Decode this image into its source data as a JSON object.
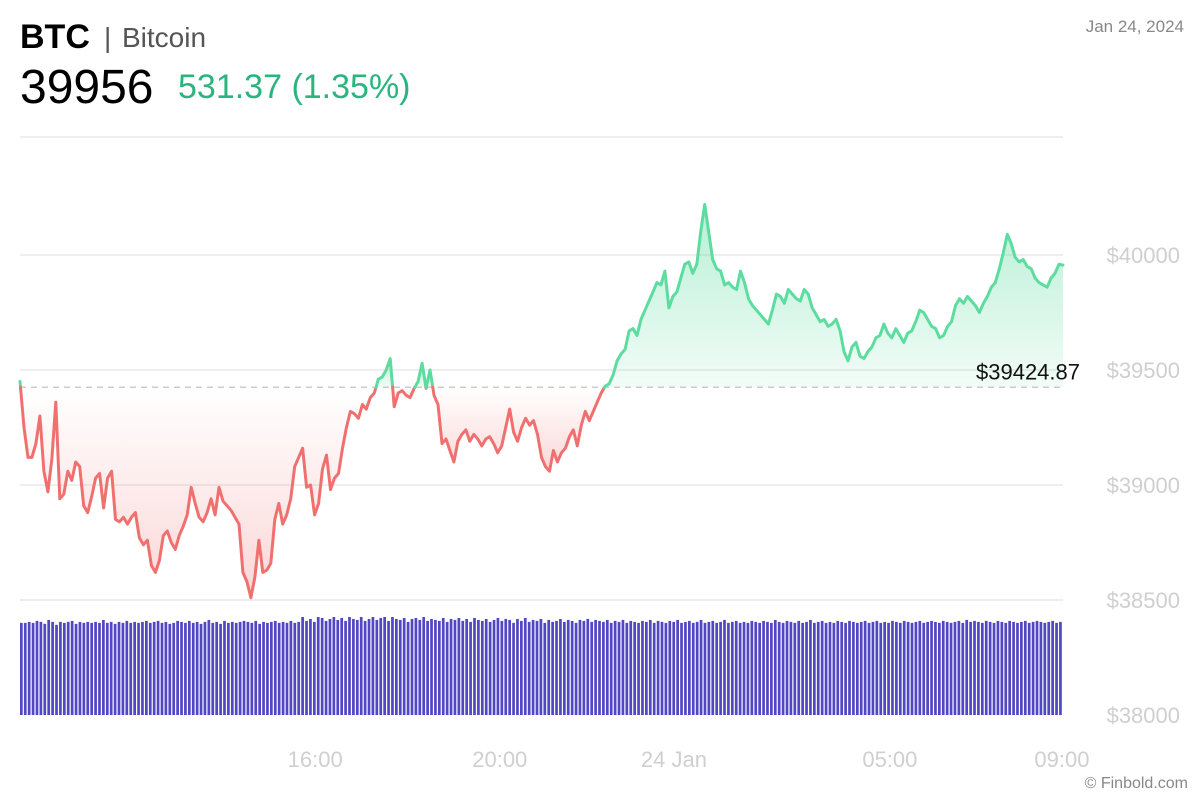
{
  "header": {
    "symbol": "BTC",
    "separator": "|",
    "name": "Bitcoin",
    "date": "Jan 24, 2024",
    "price": "39956",
    "change_value": "531.37",
    "change_percent": "(1.35%)"
  },
  "colors": {
    "up": "#5ddca0",
    "up_text": "#2bb57e",
    "down": "#f07070",
    "volume": "#5146c4",
    "grid": "#dddddd",
    "axis_text": "#cfcfcf"
  },
  "credit": "© Finbold.com",
  "chart_data": {
    "type": "area",
    "reference_value": 39424.87,
    "reference_label": "$39424.87",
    "y_ticks": [
      38000,
      38500,
      39000,
      39500,
      40000
    ],
    "y_tick_labels": [
      "$38000",
      "$38500",
      "$39000",
      "$39500",
      "$40000"
    ],
    "ylim": [
      38000,
      40500
    ],
    "x_ticks": [
      {
        "label": "16:00",
        "t": 0.283
      },
      {
        "label": "20:00",
        "t": 0.46
      },
      {
        "label": "24 Jan",
        "t": 0.627
      },
      {
        "label": "05:00",
        "t": 0.834
      },
      {
        "label": "09:00",
        "t": 0.999
      }
    ],
    "grid": true,
    "series": [
      {
        "values": [
          39450,
          39250,
          39120,
          39120,
          39180,
          39300,
          39060,
          38970,
          39110,
          39360,
          38940,
          38960,
          39060,
          39020,
          39100,
          39080,
          38910,
          38880,
          38950,
          39030,
          39050,
          38900,
          39030,
          39060,
          38850,
          38840,
          38860,
          38830,
          38860,
          38880,
          38770,
          38740,
          38760,
          38650,
          38620,
          38670,
          38780,
          38800,
          38750,
          38720,
          38780,
          38820,
          38870,
          38990,
          38920,
          38860,
          38840,
          38880,
          38940,
          38870,
          38990,
          38930,
          38910,
          38890,
          38860,
          38830,
          38620,
          38580,
          38510,
          38600,
          38760,
          38620,
          38630,
          38660,
          38850,
          38920,
          38830,
          38870,
          38940,
          39080,
          39120,
          39160,
          38990,
          39000,
          38870,
          38920,
          39070,
          39130,
          38980,
          39030,
          39050,
          39160,
          39250,
          39320,
          39310,
          39290,
          39350,
          39330,
          39380,
          39400,
          39460,
          39470,
          39500,
          39550,
          39340,
          39400,
          39410,
          39390,
          39380,
          39420,
          39450,
          39530,
          39420,
          39500,
          39390,
          39350,
          39180,
          39200,
          39150,
          39100,
          39190,
          39220,
          39240,
          39190,
          39220,
          39200,
          39170,
          39200,
          39210,
          39180,
          39140,
          39170,
          39250,
          39330,
          39230,
          39190,
          39250,
          39290,
          39260,
          39280,
          39220,
          39120,
          39080,
          39060,
          39150,
          39100,
          39140,
          39160,
          39210,
          39240,
          39170,
          39260,
          39320,
          39280,
          39320,
          39360,
          39400,
          39430,
          39440,
          39480,
          39540,
          39570,
          39590,
          39670,
          39680,
          39650,
          39720,
          39760,
          39800,
          39840,
          39880,
          39870,
          39930,
          39770,
          39820,
          39840,
          39900,
          39960,
          39970,
          39920,
          39960,
          40100,
          40220,
          40100,
          39980,
          39940,
          39930,
          39870,
          39880,
          39860,
          39850,
          39930,
          39880,
          39810,
          39780,
          39760,
          39740,
          39720,
          39700,
          39760,
          39830,
          39820,
          39790,
          39850,
          39830,
          39810,
          39800,
          39850,
          39830,
          39770,
          39740,
          39710,
          39720,
          39690,
          39700,
          39720,
          39670,
          39580,
          39540,
          39600,
          39620,
          39560,
          39550,
          39580,
          39600,
          39640,
          39650,
          39700,
          39660,
          39640,
          39680,
          39650,
          39620,
          39660,
          39670,
          39710,
          39760,
          39750,
          39720,
          39690,
          39680,
          39640,
          39650,
          39690,
          39710,
          39780,
          39810,
          39790,
          39820,
          39800,
          39780,
          39750,
          39790,
          39820,
          39860,
          39880,
          39940,
          40010,
          40090,
          40050,
          39990,
          39970,
          39980,
          39950,
          39940,
          39900,
          39880,
          39870,
          39860,
          39900,
          39920,
          39960,
          39956
        ]
      }
    ],
    "volume": [
      0.94,
      0.94,
      0.95,
      0.94,
      0.96,
      0.95,
      0.93,
      0.97,
      0.95,
      0.92,
      0.95,
      0.94,
      0.95,
      0.96,
      0.93,
      0.95,
      0.94,
      0.95,
      0.94,
      0.95,
      0.94,
      0.97,
      0.94,
      0.95,
      0.93,
      0.95,
      0.94,
      0.96,
      0.94,
      0.95,
      0.94,
      0.95,
      0.96,
      0.94,
      0.95,
      0.96,
      0.94,
      0.95,
      0.93,
      0.94,
      0.96,
      0.95,
      0.94,
      0.96,
      0.94,
      0.95,
      0.93,
      0.95,
      0.97,
      0.94,
      0.95,
      0.93,
      0.96,
      0.94,
      0.95,
      0.94,
      0.95,
      0.96,
      0.95,
      0.94,
      0.96,
      0.93,
      0.95,
      0.94,
      0.95,
      0.96,
      0.94,
      0.95,
      0.94,
      0.96,
      0.94,
      0.95,
      1.0,
      0.96,
      0.98,
      0.95,
      1.0,
      0.99,
      0.96,
      0.98,
      1.0,
      0.97,
      0.99,
      0.96,
      1.0,
      0.98,
      0.97,
      1.0,
      0.96,
      0.98,
      1.0,
      0.97,
      0.99,
      1.0,
      0.96,
      1.0,
      0.98,
      0.97,
      0.99,
      0.95,
      0.98,
      0.99,
      0.97,
      1.0,
      0.96,
      0.98,
      0.97,
      0.96,
      0.99,
      0.95,
      0.98,
      0.97,
      0.99,
      0.96,
      0.98,
      0.95,
      0.99,
      0.97,
      0.96,
      0.98,
      0.95,
      0.97,
      0.99,
      0.96,
      0.98,
      0.97,
      0.94,
      0.98,
      0.96,
      0.99,
      0.95,
      0.97,
      0.96,
      0.98,
      0.94,
      0.97,
      0.95,
      0.96,
      0.98,
      0.95,
      0.97,
      0.96,
      0.94,
      0.97,
      0.96,
      0.98,
      0.95,
      0.97,
      0.96,
      0.95,
      0.97,
      0.94,
      0.96,
      0.95,
      0.97,
      0.94,
      0.96,
      0.95,
      0.94,
      0.96,
      0.95,
      0.97,
      0.94,
      0.96,
      0.95,
      0.94,
      0.96,
      0.95,
      0.97,
      0.94,
      0.95,
      0.96,
      0.94,
      0.95,
      0.97,
      0.94,
      0.95,
      0.96,
      0.94,
      0.95,
      0.97,
      0.94,
      0.95,
      0.96,
      0.94,
      0.95,
      0.94,
      0.96,
      0.95,
      0.94,
      0.96,
      0.95,
      0.94,
      0.97,
      0.95,
      0.94,
      0.96,
      0.95,
      0.94,
      0.96,
      0.94,
      0.95,
      0.97,
      0.94,
      0.95,
      0.96,
      0.94,
      0.95,
      0.94,
      0.96,
      0.95,
      0.94,
      0.96,
      0.95,
      0.94,
      0.95,
      0.96,
      0.94,
      0.95,
      0.96,
      0.94,
      0.95,
      0.94,
      0.96,
      0.95,
      0.94,
      0.96,
      0.95,
      0.94,
      0.95,
      0.96,
      0.94,
      0.95,
      0.96,
      0.95,
      0.94,
      0.96,
      0.95,
      0.94,
      0.95,
      0.96,
      0.94,
      0.97,
      0.95,
      0.96,
      0.95,
      0.94,
      0.96,
      0.95,
      0.94,
      0.96,
      0.95,
      0.94,
      0.96,
      0.95,
      0.94,
      0.95,
      0.96,
      0.94,
      0.95,
      0.96,
      0.95,
      0.94,
      0.95,
      0.96,
      0.94,
      0.95
    ]
  }
}
